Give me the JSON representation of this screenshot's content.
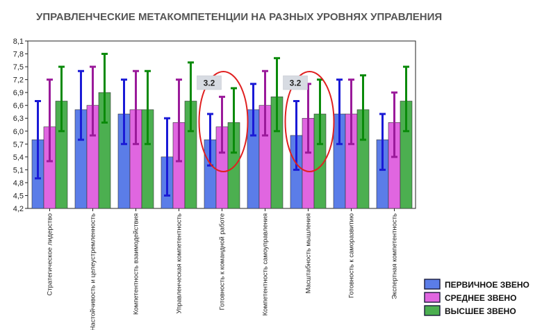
{
  "chart_data": {
    "type": "bar",
    "title": "УПРАВЛЕНЧЕСКИЕ МЕТАКОМПЕТЕНЦИИ НА РАЗНЫХ УРОВНЯХ УПРАВЛЕНИЯ",
    "ylim": [
      4.2,
      8.1
    ],
    "yticks": [
      "8,1",
      "7,8",
      "7,5",
      "7,2",
      "6,9",
      "6,6",
      "6,3",
      "6,0",
      "5,7",
      "5,4",
      "5,1",
      "4,8",
      "4,5",
      "4,2"
    ],
    "grid": false,
    "legend_position": "bottom-right",
    "categories": [
      "Стратегическое лидерство",
      "Настойчивость и целеустремленность",
      "Компетентность взаимодействия",
      "Управленческая компетентность",
      "Готовность к командной работе",
      "Компетентность самоуправления",
      "Масштабность мышления",
      "Готовность к саморазвитию",
      "Экспертная компетентность"
    ],
    "series": [
      {
        "name": "ПЕРВИЧНОЕ ЗВЕНО",
        "color": "#5b7de8",
        "error_color": "#1a1ad6",
        "values": [
          5.8,
          6.5,
          6.4,
          5.4,
          5.8,
          6.5,
          5.9,
          6.4,
          5.8
        ],
        "err_low": [
          4.9,
          5.8,
          5.7,
          4.5,
          5.2,
          5.9,
          5.1,
          5.7,
          5.1
        ],
        "err_high": [
          6.7,
          7.4,
          7.2,
          6.3,
          6.4,
          7.1,
          6.7,
          7.2,
          6.4
        ]
      },
      {
        "name": "СРЕДНЕЕ ЗВЕНО",
        "color": "#e066e0",
        "error_color": "#9a1a9a",
        "values": [
          6.1,
          6.6,
          6.5,
          6.2,
          6.1,
          6.6,
          6.3,
          6.4,
          6.2
        ],
        "err_low": [
          5.3,
          5.9,
          5.7,
          5.3,
          5.5,
          5.9,
          5.5,
          5.7,
          5.4
        ],
        "err_high": [
          7.2,
          7.5,
          7.4,
          7.2,
          6.8,
          7.4,
          7.1,
          7.2,
          6.9
        ]
      },
      {
        "name": "ВЫСШЕЕ ЗВЕНО",
        "color": "#4caf50",
        "error_color": "#0a8a0a",
        "values": [
          6.7,
          6.9,
          6.5,
          6.7,
          6.2,
          6.8,
          6.4,
          6.5,
          6.7
        ],
        "err_low": [
          6.0,
          6.2,
          5.7,
          6.0,
          5.5,
          6.0,
          5.7,
          5.8,
          6.0
        ],
        "err_high": [
          7.5,
          7.8,
          7.4,
          7.6,
          7.0,
          7.7,
          7.2,
          7.3,
          7.5
        ]
      }
    ],
    "annotations": [
      {
        "category_index": 4,
        "label": "3.2",
        "color": "#e02020",
        "badge_color": "#d7dbe2"
      },
      {
        "category_index": 6,
        "label": "3.2",
        "color": "#e02020",
        "badge_color": "#d7dbe2"
      }
    ]
  }
}
